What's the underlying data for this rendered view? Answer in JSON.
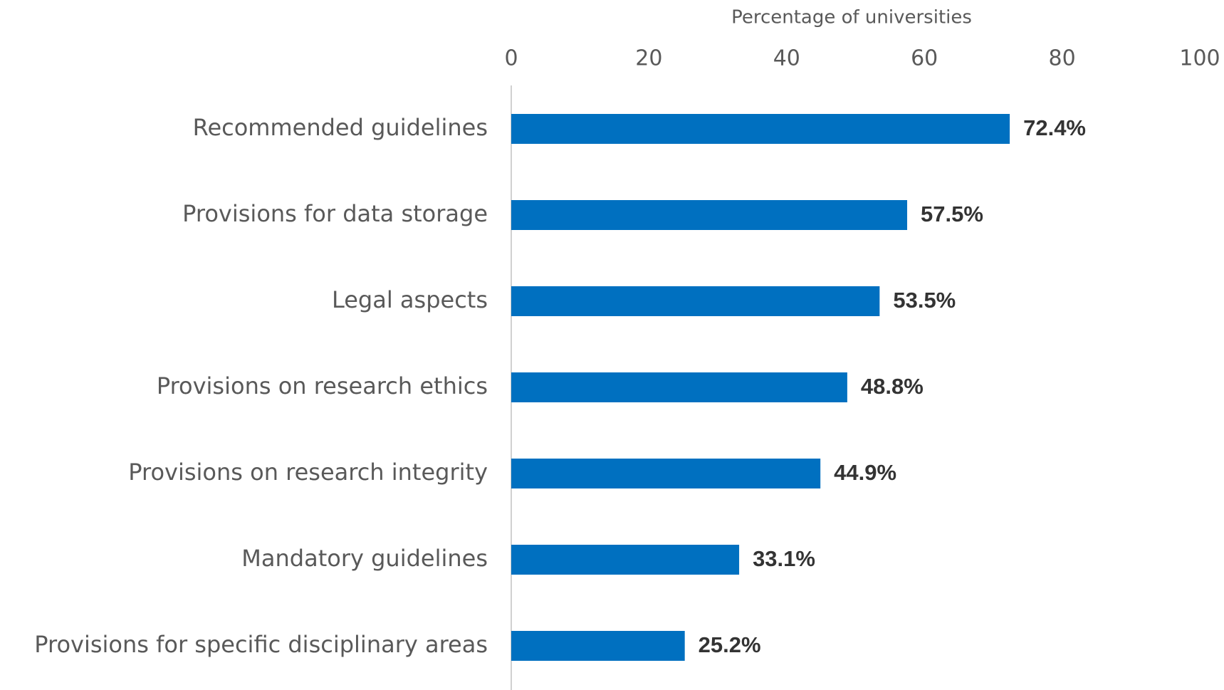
{
  "chart_data": {
    "type": "bar",
    "orientation": "horizontal",
    "x_label": "Percentage of universities",
    "categories": [
      "Recommended guidelines",
      "Provisions for data storage",
      "Legal aspects",
      "Provisions on research ethics",
      "Provisions on research integrity",
      "Mandatory guidelines",
      "Provisions for specific disciplinary areas"
    ],
    "values": [
      72.4,
      57.5,
      53.5,
      48.8,
      44.9,
      33.1,
      25.2
    ],
    "value_labels": [
      "72.4%",
      "57.5%",
      "53.5%",
      "48.8%",
      "44.9%",
      "33.1%",
      "25.2%"
    ],
    "color": "#0070c0",
    "xlim": [
      0,
      100
    ],
    "xticks": [
      0,
      20,
      40,
      60,
      80,
      100
    ],
    "grid": false
  }
}
